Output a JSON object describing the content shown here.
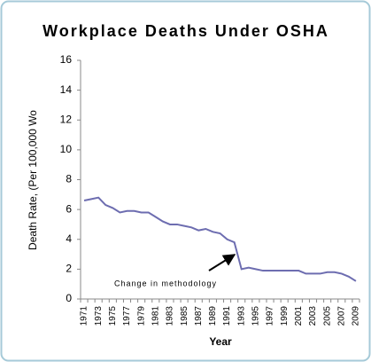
{
  "chart_data": {
    "type": "line",
    "title": "Workplace Deaths Under OSHA",
    "y_label": "Death Rate, (Per 100,000 Wo",
    "x_label": "Year",
    "annotation": "Change in methodology",
    "categories": [
      "1971",
      null,
      "1973",
      null,
      "1975",
      null,
      "1977",
      null,
      "1979",
      null,
      "1981",
      null,
      "1983",
      null,
      "1985",
      null,
      "1987",
      null,
      "1989",
      null,
      "1991",
      null,
      "1993",
      null,
      "1995",
      null,
      "1997",
      null,
      "1999",
      null,
      "2001",
      null,
      "2003",
      null,
      "2005",
      null,
      "2007",
      null,
      "2009"
    ],
    "series": [
      {
        "color": "#6d6db0",
        "values": [
          6.6,
          6.7,
          6.8,
          6.3,
          6.1,
          5.8,
          5.9,
          5.9,
          5.8,
          5.8,
          5.5,
          5.2,
          5.0,
          5.0,
          4.9,
          4.8,
          4.6,
          4.7,
          4.5,
          4.4,
          4.0,
          3.8,
          2.0,
          2.1,
          2.0,
          1.9,
          1.9,
          1.9,
          1.9,
          1.9,
          1.9,
          1.7,
          1.7,
          1.7,
          1.8,
          1.8,
          1.7,
          1.5,
          1.2
        ]
      }
    ],
    "ylim": [
      0,
      16
    ],
    "yticks": [
      0,
      2,
      4,
      6,
      8,
      10,
      12,
      14,
      16
    ],
    "grid": false
  }
}
